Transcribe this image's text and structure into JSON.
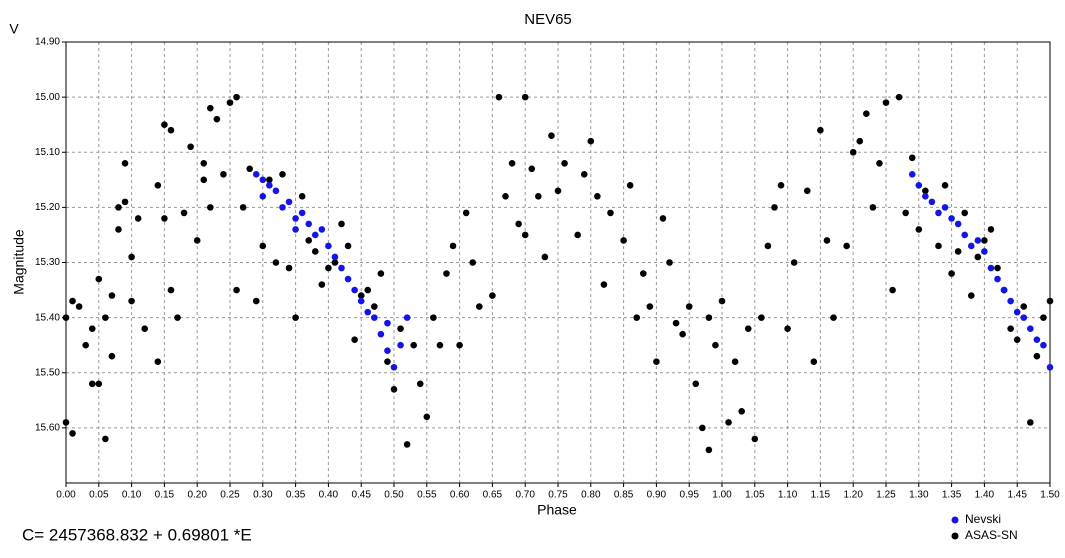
{
  "chart_data": {
    "type": "scatter",
    "title": "NEV65",
    "y_unit_label": "V",
    "xlabel": "Phase",
    "ylabel": "Magnitude",
    "footnote": "C= 2457368.832 + 0.69801 *E",
    "xlim": [
      0,
      1.5
    ],
    "ylim": [
      14.9,
      15.7
    ],
    "y_inverted": true,
    "grid": true,
    "legend": "bottom-right",
    "xticks": [
      {
        "value": 0,
        "label": "0.00"
      },
      0.05,
      {
        "value": 0.1,
        "label": "0.10"
      },
      0.15,
      {
        "value": 0.2,
        "label": "0.20"
      },
      0.25,
      {
        "value": 0.3,
        "label": "0.30"
      },
      0.35,
      {
        "value": 0.4,
        "label": "0.40"
      },
      0.45,
      {
        "value": 0.5,
        "label": "0.50"
      },
      0.55,
      {
        "value": 0.6,
        "label": "0.60"
      },
      0.65,
      {
        "value": 0.7,
        "label": "0.70"
      },
      0.75,
      {
        "value": 0.8,
        "label": "0.80"
      },
      0.85,
      {
        "value": 0.9,
        "label": "0.90"
      },
      0.95,
      {
        "value": 1,
        "label": "1.00"
      },
      1.05,
      {
        "value": 1.1,
        "label": "1.10"
      },
      1.15,
      {
        "value": 1.2,
        "label": "1.20"
      },
      1.25,
      {
        "value": 1.3,
        "label": "1.30"
      },
      1.35,
      {
        "value": 1.4,
        "label": "1.40"
      },
      1.45,
      {
        "value": 1.5,
        "label": "1.50"
      }
    ],
    "yticks": [
      {
        "value": 14.9,
        "label": "14.90"
      },
      {
        "value": 15,
        "label": "15.00"
      },
      {
        "value": 15.1,
        "label": "15.10"
      },
      {
        "value": 15.2,
        "label": "15.20"
      },
      {
        "value": 15.3,
        "label": "15.30"
      },
      {
        "value": 15.4,
        "label": "15.40"
      },
      {
        "value": 15.5,
        "label": "15.50"
      },
      {
        "value": 15.6,
        "label": "15.60"
      }
    ],
    "series": [
      {
        "name": "Nevski",
        "color": "#1414e6",
        "x": [
          0.29,
          0.3,
          0.3,
          0.31,
          0.32,
          0.33,
          0.34,
          0.35,
          0.35,
          0.36,
          0.37,
          0.38,
          0.39,
          0.4,
          0.41,
          0.42,
          0.43,
          0.44,
          0.45,
          0.46,
          0.47,
          0.48,
          0.49,
          0.49,
          0.5,
          0.51,
          0.52,
          1.29,
          1.3,
          1.31,
          1.32,
          1.33,
          1.34,
          1.35,
          1.36,
          1.37,
          1.38,
          1.39,
          1.4,
          1.41,
          1.42,
          1.43,
          1.44,
          1.45,
          1.46,
          1.47,
          1.48,
          1.49,
          1.5
        ],
        "values": [
          15.14,
          15.15,
          15.18,
          15.16,
          15.17,
          15.2,
          15.19,
          15.22,
          15.24,
          15.21,
          15.23,
          15.25,
          15.24,
          15.27,
          15.29,
          15.31,
          15.33,
          15.35,
          15.37,
          15.39,
          15.4,
          15.43,
          15.41,
          15.46,
          15.49,
          15.45,
          15.4,
          15.14,
          15.16,
          15.18,
          15.19,
          15.21,
          15.2,
          15.22,
          15.23,
          15.25,
          15.27,
          15.26,
          15.28,
          15.31,
          15.33,
          15.35,
          15.37,
          15.39,
          15.4,
          15.42,
          15.44,
          15.45,
          15.49
        ]
      },
      {
        "name": "ASAS-SN",
        "color": "#000000",
        "x": [
          0,
          0,
          0.01,
          0.01,
          0.02,
          0.03,
          0.04,
          0.04,
          0.05,
          0.05,
          0.06,
          0.06,
          0.07,
          0.07,
          0.08,
          0.08,
          0.09,
          0.09,
          0.1,
          0.1,
          0.11,
          0.12,
          0.14,
          0.14,
          0.15,
          0.15,
          0.16,
          0.16,
          0.17,
          0.18,
          0.19,
          0.2,
          0.21,
          0.21,
          0.22,
          0.22,
          0.23,
          0.24,
          0.25,
          0.26,
          0.26,
          0.27,
          0.28,
          0.29,
          0.3,
          0.31,
          0.32,
          0.33,
          0.34,
          0.35,
          0.36,
          0.37,
          0.38,
          0.39,
          0.4,
          0.41,
          0.42,
          0.43,
          0.44,
          0.45,
          0.46,
          0.47,
          0.48,
          0.49,
          0.5,
          0.51,
          0.52,
          0.53,
          0.54,
          0.55,
          0.56,
          0.57,
          0.58,
          0.59,
          0.6,
          0.61,
          0.62,
          0.63,
          0.65,
          0.66,
          0.67,
          0.68,
          0.69,
          0.7,
          0.7,
          0.71,
          0.72,
          0.73,
          0.74,
          0.75,
          0.76,
          0.78,
          0.79,
          0.8,
          0.81,
          0.82,
          0.83,
          0.85,
          0.86,
          0.87,
          0.88,
          0.89,
          0.9,
          0.91,
          0.92,
          0.93,
          0.94,
          0.95,
          0.96,
          0.97,
          0.98,
          0.98,
          0.99,
          1,
          1.01,
          1.02,
          1.03,
          1.04,
          1.05,
          1.06,
          1.07,
          1.08,
          1.09,
          1.1,
          1.11,
          1.13,
          1.14,
          1.15,
          1.16,
          1.17,
          1.19,
          1.2,
          1.21,
          1.22,
          1.23,
          1.24,
          1.25,
          1.26,
          1.27,
          1.28,
          1.29,
          1.3,
          1.31,
          1.33,
          1.34,
          1.35,
          1.36,
          1.37,
          1.38,
          1.39,
          1.4,
          1.41,
          1.42,
          1.43,
          1.44,
          1.45,
          1.46,
          1.47,
          1.48,
          1.49,
          1.5
        ],
        "values": [
          15.4,
          15.59,
          15.61,
          15.37,
          15.38,
          15.45,
          15.52,
          15.42,
          15.33,
          15.52,
          15.62,
          15.4,
          15.36,
          15.47,
          15.24,
          15.2,
          15.12,
          15.19,
          15.29,
          15.37,
          15.22,
          15.42,
          15.48,
          15.16,
          15.22,
          15.05,
          15.06,
          15.35,
          15.4,
          15.21,
          15.09,
          15.26,
          15.12,
          15.15,
          15.02,
          15.2,
          15.04,
          15.14,
          15.01,
          15,
          15.35,
          15.2,
          15.13,
          15.37,
          15.27,
          15.15,
          15.3,
          15.14,
          15.31,
          15.4,
          15.18,
          15.26,
          15.28,
          15.34,
          15.31,
          15.3,
          15.23,
          15.27,
          15.44,
          15.36,
          15.35,
          15.38,
          15.32,
          15.48,
          15.53,
          15.42,
          15.63,
          15.45,
          15.52,
          15.58,
          15.4,
          15.45,
          15.32,
          15.27,
          15.45,
          15.21,
          15.3,
          15.38,
          15.36,
          15,
          15.18,
          15.12,
          15.23,
          15,
          15.25,
          15.13,
          15.18,
          15.29,
          15.07,
          15.17,
          15.12,
          15.25,
          15.14,
          15.08,
          15.18,
          15.34,
          15.21,
          15.26,
          15.16,
          15.4,
          15.32,
          15.38,
          15.48,
          15.22,
          15.3,
          15.41,
          15.43,
          15.38,
          15.52,
          15.6,
          15.64,
          15.4,
          15.45,
          15.37,
          15.59,
          15.48,
          15.57,
          15.42,
          15.62,
          15.4,
          15.27,
          15.2,
          15.16,
          15.42,
          15.3,
          15.17,
          15.48,
          15.06,
          15.26,
          15.4,
          15.27,
          15.1,
          15.08,
          15.03,
          15.2,
          15.12,
          15.01,
          15.35,
          15,
          15.21,
          15.11,
          15.24,
          15.17,
          15.27,
          15.16,
          15.32,
          15.28,
          15.21,
          15.36,
          15.29,
          15.26,
          15.24,
          15.31,
          15.35,
          15.42,
          15.44,
          15.38,
          15.59,
          15.47,
          15.4,
          15.37
        ]
      }
    ]
  }
}
